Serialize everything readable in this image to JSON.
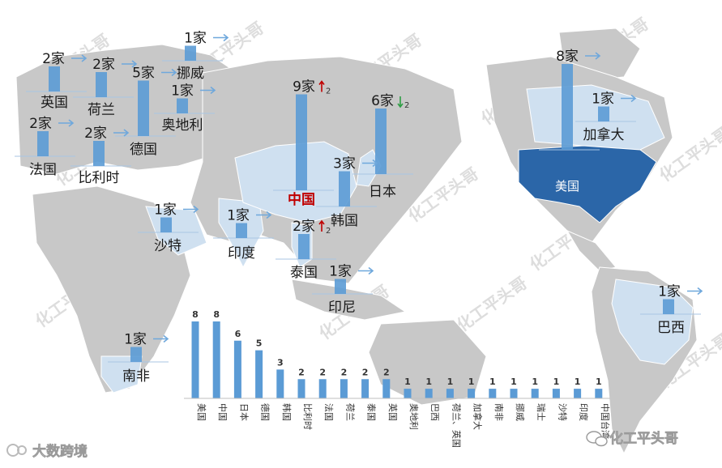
{
  "chart_data": [
    {
      "type": "map-bar",
      "unit": "家",
      "markers": [
        {
          "country": "英国",
          "count": 2
        },
        {
          "country": "荷兰",
          "count": 2
        },
        {
          "country": "德国",
          "count": 5
        },
        {
          "country": "挪威",
          "count": 1
        },
        {
          "country": "奥地利",
          "count": 1
        },
        {
          "country": "法国",
          "count": 2
        },
        {
          "country": "比利时",
          "count": 2
        },
        {
          "country": "中国",
          "count": 9,
          "change": 2,
          "direction": "up"
        },
        {
          "country": "日本",
          "count": 6,
          "change": 2,
          "direction": "down"
        },
        {
          "country": "韩国",
          "count": 3
        },
        {
          "country": "泰国",
          "count": 2,
          "change": 2,
          "direction": "up"
        },
        {
          "country": "印度",
          "count": 1
        },
        {
          "country": "沙特",
          "count": 1
        },
        {
          "country": "印尼",
          "count": 1
        },
        {
          "country": "南非",
          "count": 1
        },
        {
          "country": "美国",
          "count": 8
        },
        {
          "country": "加拿大",
          "count": 1
        },
        {
          "country": "巴西",
          "count": 1
        }
      ]
    },
    {
      "type": "bar",
      "categories": [
        "美国",
        "中国",
        "日本",
        "德国",
        "韩国",
        "比利时",
        "法国",
        "荷兰",
        "泰国",
        "英国",
        "奥地利",
        "巴西",
        "荷兰、英国",
        "加拿大",
        "南非",
        "挪威",
        "瑞士",
        "沙特",
        "印度",
        "中国台湾"
      ],
      "values": [
        8,
        8,
        6,
        5,
        3,
        2,
        2,
        2,
        2,
        2,
        1,
        1,
        1,
        1,
        1,
        1,
        1,
        1,
        1,
        1
      ],
      "ylim": [
        0,
        8
      ],
      "color": "#5b9bd5"
    }
  ],
  "watermarks": [
    "化工平头哥",
    "化工平头哥",
    "化工平头哥",
    "化工平头哥",
    "化工平头哥",
    "化工平头哥",
    "化工平头哥",
    "化工平头哥",
    "化工平头哥",
    "化工平头哥",
    "化工平头哥",
    "化工平头哥",
    "化工平头哥",
    "化工平头哥"
  ],
  "branding": {
    "left": "大数跨境",
    "right": "化工平头哥"
  },
  "colors": {
    "bar": "#5b9bd5",
    "arrow": "#6fa8dc",
    "up": "#c00000",
    "down": "#2e9e44",
    "china_label": "#c00000",
    "usa_fill": "#2b66a8",
    "highlight_land": "#cfe0f0"
  }
}
